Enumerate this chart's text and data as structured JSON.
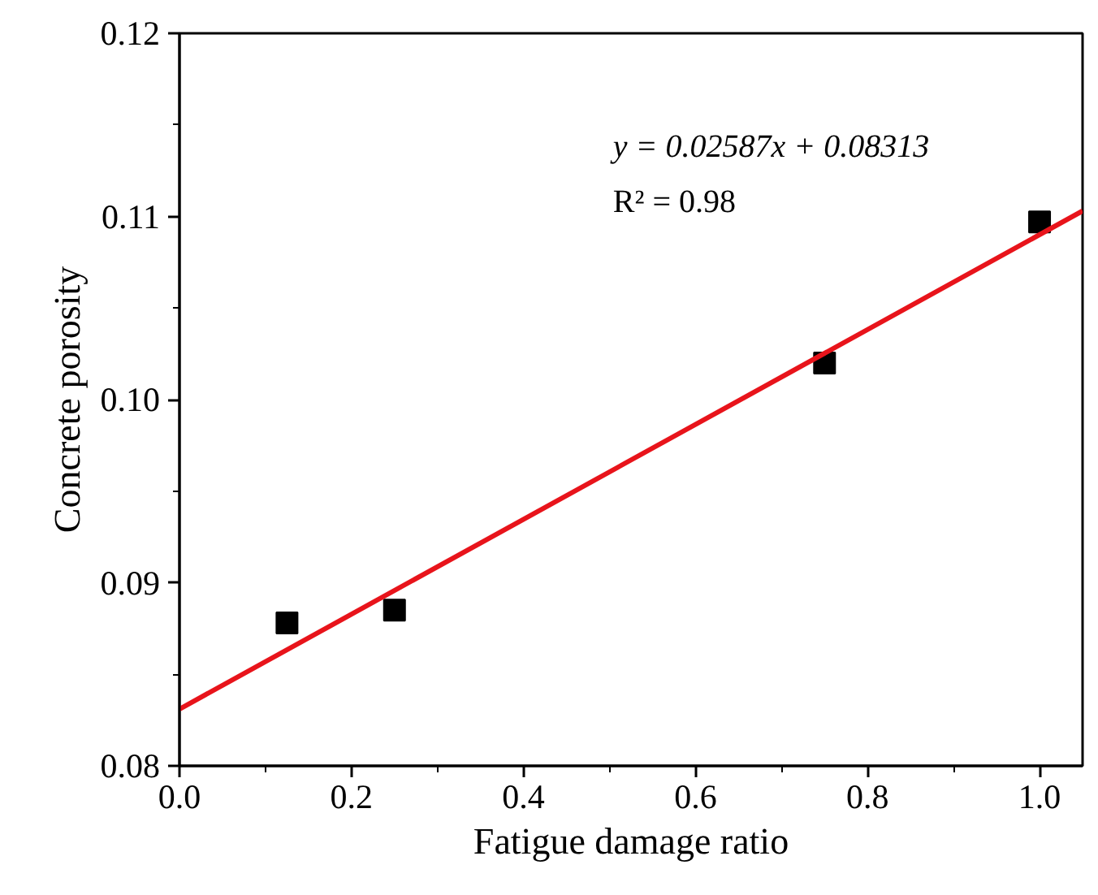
{
  "chart_data": {
    "type": "scatter",
    "xlabel": "Fatigue damage ratio",
    "ylabel": "Concrete porosity",
    "x": [
      0.125,
      0.25,
      0.75,
      1.0
    ],
    "series": [
      {
        "color": "#000000",
        "marker": "square",
        "values": [
          0.0878,
          0.0885,
          0.102,
          0.1097
        ]
      },
      {
        "type": "line",
        "color": "#e8141b",
        "x": [
          0,
          1.05
        ],
        "values": [
          0.0831,
          0.1103
        ],
        "marker": "none",
        "line_style": "solid"
      }
    ],
    "xlim": [
      0,
      1.05
    ],
    "ylim": [
      0.08,
      0.12
    ],
    "xticks": [
      {
        "value": 0,
        "label": "0.0"
      },
      {
        "value": 0.2,
        "label": "0.2"
      },
      {
        "value": 0.4,
        "label": "0.4"
      },
      {
        "value": 0.6,
        "label": "0.6"
      },
      {
        "value": 0.8,
        "label": "0.8"
      },
      {
        "value": 1.0,
        "label": "1.0"
      }
    ],
    "yticks": [
      {
        "value": 0.08,
        "label": "0.08"
      },
      {
        "value": 0.09,
        "label": "0.09"
      },
      {
        "value": 0.1,
        "label": "0.10"
      },
      {
        "value": 0.11,
        "label": "0.11"
      },
      {
        "value": 0.12,
        "label": "0.12"
      }
    ],
    "annotations": [
      "y = 0.02587x + 0.08313",
      "R² = 0.98"
    ],
    "grid": false
  }
}
